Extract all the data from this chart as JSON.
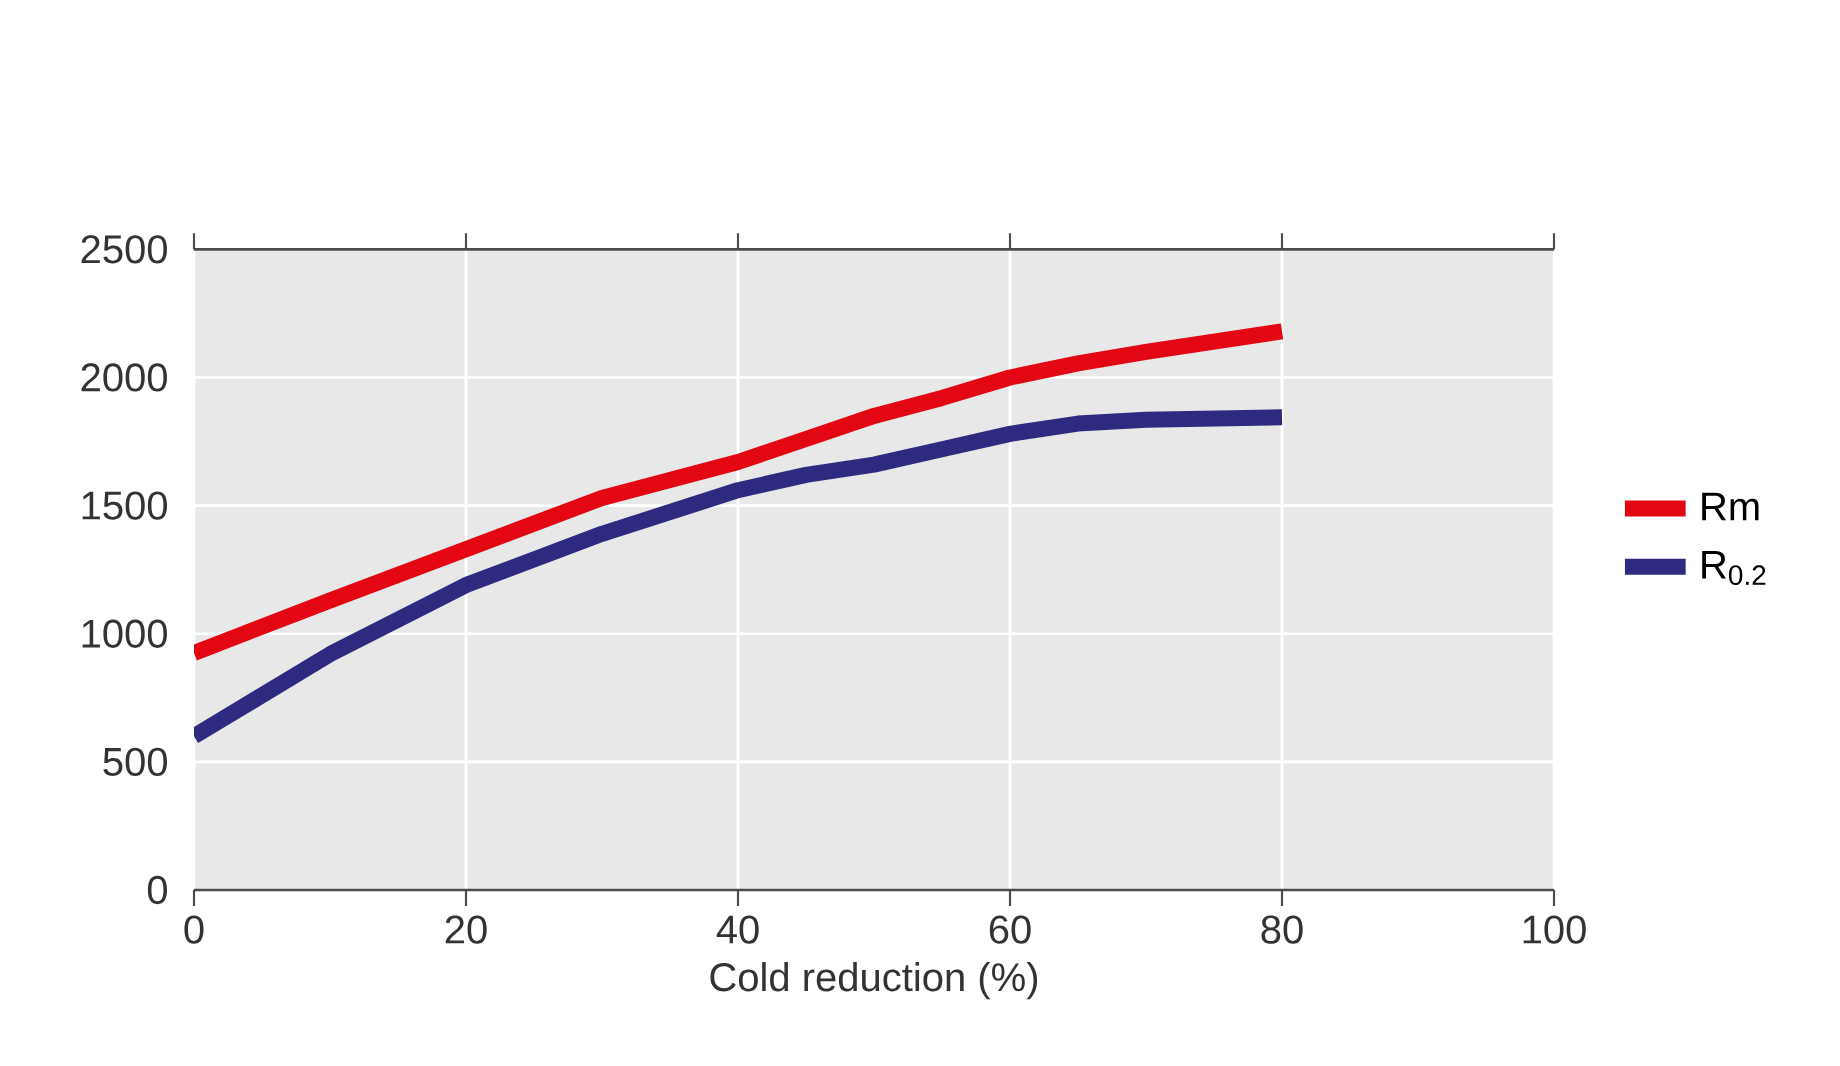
{
  "chart_data": {
    "type": "line",
    "xlabel": "Cold reduction (%)",
    "xlim": [
      0,
      100
    ],
    "ylim": [
      0,
      2500
    ],
    "xticks": [
      0,
      20,
      40,
      60,
      80,
      100
    ],
    "yticks": [
      0,
      500,
      1000,
      1500,
      2000,
      2500
    ],
    "grid": true,
    "legend": "right",
    "marker": "none",
    "line_style": "solid",
    "x": [
      0,
      10,
      20,
      30,
      40,
      45,
      50,
      55,
      60,
      65,
      70,
      80
    ],
    "series": [
      {
        "name": "Rm",
        "color": "#e30613",
        "values": [
          925,
          1130,
          1330,
          1530,
          1670,
          1760,
          1850,
          1920,
          2000,
          2055,
          2100,
          2180
        ]
      },
      {
        "name": "R$_{0.2}$",
        "color": "#2e2a7f",
        "values": [
          600,
          920,
          1190,
          1390,
          1560,
          1620,
          1660,
          1720,
          1780,
          1820,
          1835,
          1845
        ]
      }
    ]
  }
}
